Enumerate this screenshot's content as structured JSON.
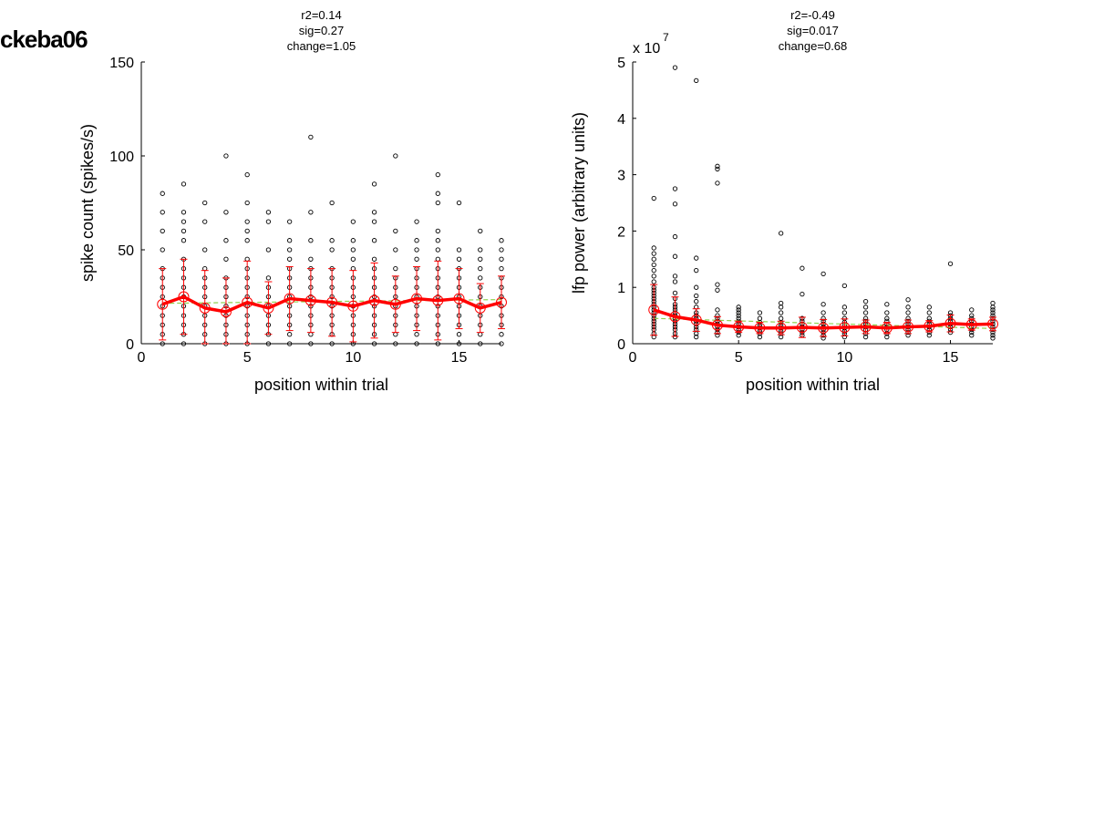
{
  "figure_label": "ckeba06",
  "chart_data": [
    {
      "type": "scatter",
      "title": [
        "r2=0.14",
        "sig=0.27",
        "change=1.05"
      ],
      "xlabel": "position within trial",
      "ylabel": "spike count (spikes/s)",
      "exponent_label": "",
      "xlim": [
        0,
        17
      ],
      "ylim": [
        0,
        150
      ],
      "xticks": [
        0,
        5,
        10,
        15
      ],
      "yticks": [
        0,
        50,
        100,
        150
      ],
      "grid": false,
      "raw_points": [
        {
          "x": 1,
          "y": [
            0,
            5,
            10,
            15,
            20,
            25,
            30,
            35,
            40,
            50,
            60,
            70,
            80
          ]
        },
        {
          "x": 2,
          "y": [
            0,
            5,
            10,
            15,
            20,
            25,
            30,
            35,
            40,
            45,
            55,
            60,
            65,
            70,
            85
          ]
        },
        {
          "x": 3,
          "y": [
            0,
            5,
            10,
            15,
            20,
            25,
            30,
            35,
            40,
            50,
            65,
            75
          ]
        },
        {
          "x": 4,
          "y": [
            0,
            5,
            10,
            15,
            20,
            25,
            30,
            35,
            45,
            55,
            70,
            100
          ]
        },
        {
          "x": 5,
          "y": [
            0,
            5,
            10,
            15,
            20,
            25,
            30,
            35,
            40,
            45,
            55,
            60,
            65,
            75,
            90
          ]
        },
        {
          "x": 6,
          "y": [
            0,
            5,
            10,
            15,
            20,
            25,
            30,
            35,
            50,
            65,
            70
          ]
        },
        {
          "x": 7,
          "y": [
            0,
            5,
            10,
            15,
            20,
            25,
            30,
            35,
            40,
            45,
            50,
            55,
            65
          ]
        },
        {
          "x": 8,
          "y": [
            0,
            5,
            10,
            15,
            20,
            25,
            30,
            35,
            40,
            45,
            55,
            70,
            110
          ]
        },
        {
          "x": 9,
          "y": [
            0,
            5,
            10,
            15,
            20,
            25,
            30,
            35,
            40,
            50,
            55,
            75
          ]
        },
        {
          "x": 10,
          "y": [
            0,
            5,
            10,
            15,
            20,
            25,
            30,
            35,
            40,
            45,
            50,
            55,
            65
          ]
        },
        {
          "x": 11,
          "y": [
            0,
            5,
            10,
            15,
            20,
            25,
            30,
            35,
            40,
            45,
            55,
            65,
            70,
            85
          ]
        },
        {
          "x": 12,
          "y": [
            0,
            5,
            10,
            15,
            20,
            25,
            30,
            35,
            40,
            50,
            60,
            100
          ]
        },
        {
          "x": 13,
          "y": [
            0,
            5,
            10,
            15,
            20,
            25,
            30,
            35,
            40,
            45,
            50,
            55,
            65
          ]
        },
        {
          "x": 14,
          "y": [
            0,
            5,
            10,
            15,
            20,
            25,
            30,
            35,
            40,
            45,
            50,
            55,
            60,
            75,
            80,
            90
          ]
        },
        {
          "x": 15,
          "y": [
            0,
            5,
            10,
            15,
            20,
            25,
            30,
            35,
            40,
            45,
            50,
            75
          ]
        },
        {
          "x": 16,
          "y": [
            0,
            5,
            10,
            15,
            20,
            25,
            30,
            35,
            40,
            45,
            50,
            60
          ]
        },
        {
          "x": 17,
          "y": [
            0,
            5,
            10,
            15,
            20,
            25,
            30,
            35,
            40,
            45,
            50,
            55
          ]
        }
      ],
      "mean": [
        21,
        25,
        19,
        17,
        22,
        19,
        24,
        23,
        22,
        20,
        23,
        21,
        24,
        23,
        24,
        19,
        22
      ],
      "error": [
        19,
        20,
        20,
        18,
        22,
        14,
        17,
        17,
        18,
        19,
        20,
        15,
        17,
        21,
        16,
        13,
        14
      ],
      "fit_line": {
        "x": [
          1,
          17
        ],
        "y": [
          21.5,
          23.5
        ]
      },
      "colors": {
        "mean": "#ff0000",
        "error": "#ff0000",
        "points": "#000000",
        "fit": "#8fd14f"
      }
    },
    {
      "type": "scatter",
      "title": [
        "r2=-0.49",
        "sig=0.017",
        "change=0.68"
      ],
      "xlabel": "position within trial",
      "ylabel": "lfp power (arbitrary units)",
      "exponent_label": "x 10",
      "exponent": "7",
      "xlim": [
        0,
        17
      ],
      "ylim": [
        0,
        5
      ],
      "xticks": [
        0,
        5,
        10,
        15
      ],
      "yticks": [
        0,
        1,
        2,
        3,
        4,
        5
      ],
      "grid": false,
      "raw_points": [
        {
          "x": 1,
          "y": [
            0.12,
            0.18,
            0.25,
            0.3,
            0.35,
            0.4,
            0.45,
            0.5,
            0.55,
            0.6,
            0.65,
            0.7,
            0.75,
            0.8,
            0.85,
            0.9,
            0.95,
            1.0,
            1.1,
            1.2,
            1.3,
            1.4,
            1.5,
            1.6,
            1.7,
            2.58
          ]
        },
        {
          "x": 2,
          "y": [
            0.12,
            0.18,
            0.25,
            0.3,
            0.35,
            0.4,
            0.45,
            0.5,
            0.55,
            0.6,
            0.65,
            0.7,
            0.8,
            0.9,
            1.1,
            1.2,
            1.55,
            1.9,
            2.48,
            2.75,
            4.9
          ]
        },
        {
          "x": 3,
          "y": [
            0.12,
            0.18,
            0.25,
            0.3,
            0.35,
            0.4,
            0.45,
            0.5,
            0.55,
            0.65,
            0.75,
            0.85,
            1.0,
            1.3,
            1.52,
            4.67
          ]
        },
        {
          "x": 4,
          "y": [
            0.15,
            0.2,
            0.25,
            0.3,
            0.35,
            0.4,
            0.45,
            0.5,
            0.6,
            0.95,
            1.05,
            2.85,
            3.1,
            3.15
          ]
        },
        {
          "x": 5,
          "y": [
            0.15,
            0.2,
            0.25,
            0.3,
            0.35,
            0.4,
            0.45,
            0.5,
            0.55,
            0.6,
            0.65
          ]
        },
        {
          "x": 6,
          "y": [
            0.12,
            0.18,
            0.22,
            0.28,
            0.32,
            0.38,
            0.45,
            0.55
          ]
        },
        {
          "x": 7,
          "y": [
            0.12,
            0.18,
            0.22,
            0.28,
            0.32,
            0.38,
            0.45,
            0.55,
            0.65,
            0.72,
            1.96
          ]
        },
        {
          "x": 8,
          "y": [
            0.15,
            0.2,
            0.25,
            0.3,
            0.35,
            0.4,
            0.45,
            0.88,
            1.34
          ]
        },
        {
          "x": 9,
          "y": [
            0.1,
            0.15,
            0.2,
            0.25,
            0.3,
            0.35,
            0.4,
            0.45,
            0.55,
            0.7,
            1.24
          ]
        },
        {
          "x": 10,
          "y": [
            0.12,
            0.18,
            0.22,
            0.28,
            0.32,
            0.38,
            0.45,
            0.55,
            0.65,
            1.03
          ]
        },
        {
          "x": 11,
          "y": [
            0.12,
            0.18,
            0.25,
            0.3,
            0.35,
            0.4,
            0.45,
            0.55,
            0.65,
            0.75
          ]
        },
        {
          "x": 12,
          "y": [
            0.12,
            0.18,
            0.25,
            0.3,
            0.35,
            0.4,
            0.45,
            0.55,
            0.7
          ]
        },
        {
          "x": 13,
          "y": [
            0.15,
            0.2,
            0.25,
            0.3,
            0.35,
            0.4,
            0.45,
            0.55,
            0.65,
            0.78
          ]
        },
        {
          "x": 14,
          "y": [
            0.15,
            0.2,
            0.25,
            0.3,
            0.35,
            0.4,
            0.45,
            0.55,
            0.65
          ]
        },
        {
          "x": 15,
          "y": [
            0.2,
            0.25,
            0.3,
            0.35,
            0.4,
            0.45,
            0.5,
            0.55,
            1.42
          ]
        },
        {
          "x": 16,
          "y": [
            0.15,
            0.2,
            0.25,
            0.3,
            0.35,
            0.4,
            0.45,
            0.5,
            0.6
          ]
        },
        {
          "x": 17,
          "y": [
            0.1,
            0.15,
            0.2,
            0.25,
            0.3,
            0.35,
            0.4,
            0.45,
            0.5,
            0.55,
            0.6,
            0.65,
            0.72
          ]
        }
      ],
      "mean": [
        0.6,
        0.48,
        0.42,
        0.33,
        0.3,
        0.28,
        0.28,
        0.29,
        0.28,
        0.29,
        0.3,
        0.28,
        0.3,
        0.31,
        0.36,
        0.34,
        0.35
      ],
      "error": [
        0.45,
        0.35,
        0.2,
        0.15,
        0.1,
        0.1,
        0.12,
        0.18,
        0.15,
        0.15,
        0.12,
        0.1,
        0.12,
        0.1,
        0.15,
        0.1,
        0.12
      ],
      "fit_line": {
        "x": [
          1,
          17
        ],
        "y": [
          0.45,
          0.27
        ]
      },
      "colors": {
        "mean": "#ff0000",
        "error": "#ff0000",
        "points": "#000000",
        "fit": "#8fd14f"
      }
    }
  ]
}
